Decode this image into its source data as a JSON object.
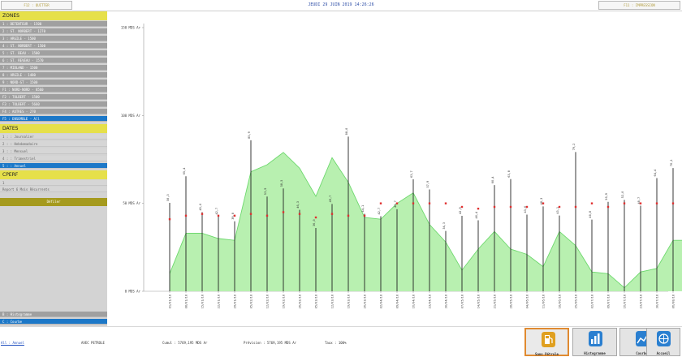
{
  "header": {
    "left_button": "F12 : QUITTER",
    "datetime": "JEUDI 29 JUIN 2019 14:26:26",
    "right_button": "F11 : IMPRESSION"
  },
  "sidebar": {
    "zones_title": "ZONES",
    "zones": [
      "1 : DETENTEUR - 1500",
      "2 : ST. NORBERT - 1270",
      "3 : ARGILE - 1500",
      "4 : ST. NORBERT - 1500",
      "5 : ST. BEAU - 1500",
      "6 : ST. REVEAU - 1570",
      "7 : MIDLAND - 1500",
      "8 : ARGILE - 1480",
      "9 : NORD-ST - 1500",
      "F1 : NORD-NORD - 8560",
      "F2 : TOLBERT - 1500",
      "F3 : TOLBERT - 5660",
      "F4 : AUTRES - 270",
      "F5 : ENSEMBLE - All"
    ],
    "zones_selected": 13,
    "dates_title": "DATES",
    "dates": [
      "1 : : Journalier",
      "2 : : Hebdomadaire",
      "3 : : Mensuel",
      "4 : : Trimestriel",
      "5 : : Annuel"
    ],
    "dates_selected": 4,
    "cperf_title": "CPERF",
    "cperf_items": [
      "1",
      "Report 6 Mois Récurrents"
    ],
    "cperf_button": "Défiler",
    "bottom_items": [
      "B : Histogramme",
      "C : Courbe"
    ],
    "bottom_selected": 1
  },
  "chart_data": {
    "type": "line",
    "ylabels": [
      "0 MDS Ar",
      "50 MDS Ar",
      "100 MDS Ar",
      "150 MDS Ar"
    ],
    "ylim": [
      0,
      150
    ],
    "x": [
      "01/01/18",
      "08/01/18",
      "15/01/18",
      "22/01/18",
      "29/01/18",
      "05/02/18",
      "12/02/18",
      "19/02/18",
      "26/02/18",
      "05/03/18",
      "12/03/18",
      "19/03/18",
      "26/03/18",
      "02/04/18",
      "09/04/18",
      "16/04/18",
      "23/04/18",
      "30/04/18",
      "07/05/18",
      "14/05/18",
      "21/05/18",
      "28/05/18",
      "04/06/18",
      "11/06/18",
      "18/06/18",
      "25/06/18",
      "02/07/18",
      "09/07/18",
      "16/07/18",
      "23/07/18",
      "30/07/18",
      "06/08/18",
      "13/08/18",
      "20/08/18",
      "27/08/18"
    ],
    "series": [
      {
        "name": "",
        "values": [
          10,
          33,
          33,
          30,
          29,
          68,
          72,
          79,
          70,
          54,
          76,
          62,
          42,
          41,
          50,
          56,
          38,
          28,
          12,
          24,
          34,
          24,
          21,
          14,
          34,
          26,
          11,
          10,
          2,
          11,
          13,
          29,
          29,
          18,
          18
        ]
      }
    ],
    "bars": [
      50.3,
      65.4,
      45.0,
      42.7,
      39.8,
      85.9,
      53.9,
      58.5,
      46.3,
      36.0,
      49.7,
      88.0,
      44.1,
      42.7,
      46.7,
      63.7,
      57.9,
      34.3,
      42.9,
      40.4,
      60.4,
      63.8,
      43.6,
      48.3,
      43.1,
      79.2,
      40.8,
      50.9,
      52.0,
      48.7,
      64.4,
      70.1,
      56.6,
      50.3,
      33.0
    ],
    "markers": [
      41,
      43,
      44,
      43,
      43,
      44,
      43,
      45,
      44,
      42,
      44,
      43,
      43,
      50,
      50,
      50,
      50,
      50,
      48,
      47,
      48,
      48,
      48,
      50,
      48,
      48,
      50,
      48,
      50,
      50,
      50,
      50,
      50,
      50,
      50
    ],
    "point_labels": [
      "50,3",
      "65,4",
      "45,0",
      "42,7",
      "39,8",
      "85,9",
      "53,9",
      "58,5",
      "46,3",
      "36,0",
      "49,7",
      "88,0",
      "44,1",
      "42,7",
      "46,7",
      "63,7",
      "57,9",
      "34,3",
      "42,9",
      "40,4",
      "60,4",
      "63,8",
      "43,6",
      "48,3",
      "43,1",
      "79,2",
      "40,8",
      "50,9",
      "52,0",
      "48,7",
      "64,4",
      "70,1",
      "56,6",
      "50,3",
      "33,0"
    ],
    "colors": {
      "area": "#b8f0b0",
      "line": "#6dd86d",
      "bar": "#222222",
      "marker": "#e03030"
    },
    "grid": false
  },
  "footer": {
    "link": "All : Annuel",
    "avec_petrole": "AVEC PETROLE",
    "cumul": "Cumul : 5769,195 MDS Ar",
    "prevision": "Prévision : 5769,195 MDS Ar",
    "taux": "Taux : 100%"
  },
  "toolbar": [
    {
      "label": "Sans Pétrole",
      "icon": "fuel-pump-icon",
      "color": "#e0a020",
      "active": true
    },
    {
      "label": "Histogramme",
      "icon": "bar-chart-icon",
      "color": "#2a7fd0",
      "active": false
    },
    {
      "label": "Courbe",
      "icon": "line-chart-icon",
      "color": "#2a7fd0",
      "active": false
    },
    {
      "label": "Accueil",
      "icon": "home-globe-icon",
      "color": "#2a7fd0",
      "active": false
    }
  ]
}
